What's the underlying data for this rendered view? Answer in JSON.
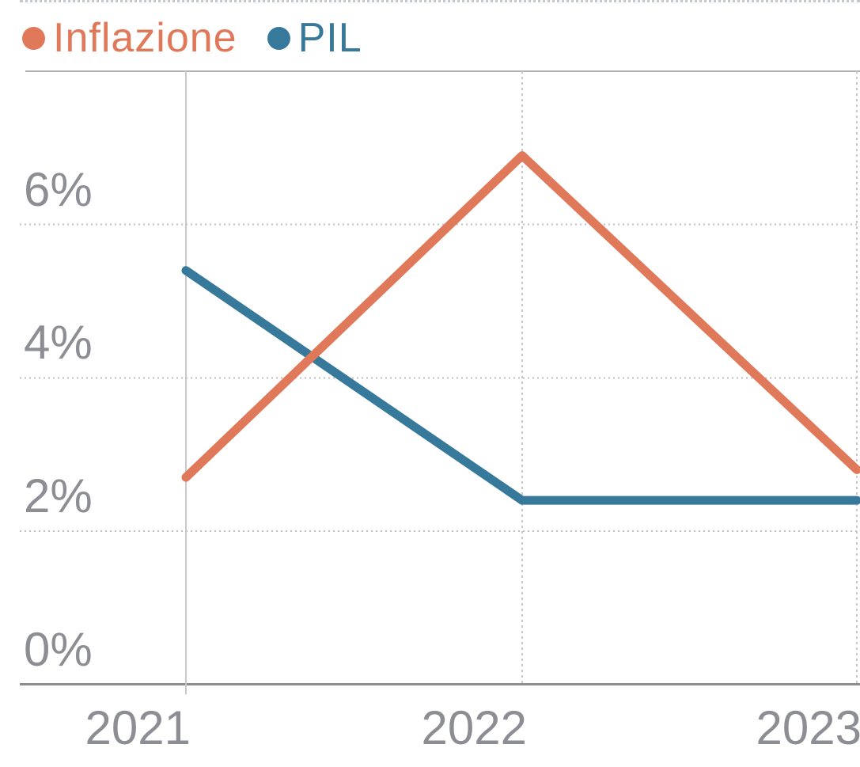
{
  "legend": {
    "items": [
      {
        "label": "Inflazione",
        "color": "#e0795a"
      },
      {
        "label": "PIL",
        "color": "#37799a"
      }
    ]
  },
  "axis": {
    "y_tick_labels": [
      "0%",
      "2%",
      "4%",
      "6%"
    ],
    "x_tick_labels": [
      "2021",
      "2022",
      "2023"
    ]
  },
  "chart_data": {
    "type": "line",
    "title": "",
    "xlabel": "",
    "ylabel": "",
    "categories": [
      "2021",
      "2022",
      "2023"
    ],
    "series": [
      {
        "name": "Inflazione",
        "color": "#e0795a",
        "values": [
          2.7,
          6.9,
          2.8
        ]
      },
      {
        "name": "PIL",
        "color": "#37799a",
        "values": [
          5.4,
          2.4,
          2.4
        ]
      }
    ],
    "ylim": [
      0,
      8
    ],
    "yticks": [
      0,
      2,
      4,
      6
    ],
    "ytick_format": "percent",
    "grid": {
      "horizontal": "dotted at 2%, 4%, 6%; solid axis at 0%; solid top border at 8%",
      "vertical": "solid light line at 2021, dotted at 2022 and 2023"
    },
    "legend_position": "top-left"
  },
  "colors": {
    "inflazione_line": "#e0795a",
    "pil_line": "#37799a",
    "axis_text": "#8d8d94",
    "dotted_gridline": "#bfbfbf",
    "solid_gridline": "#c9c9c9",
    "top_border": "#b2b2b2",
    "axis_line": "#8d8d8d"
  }
}
